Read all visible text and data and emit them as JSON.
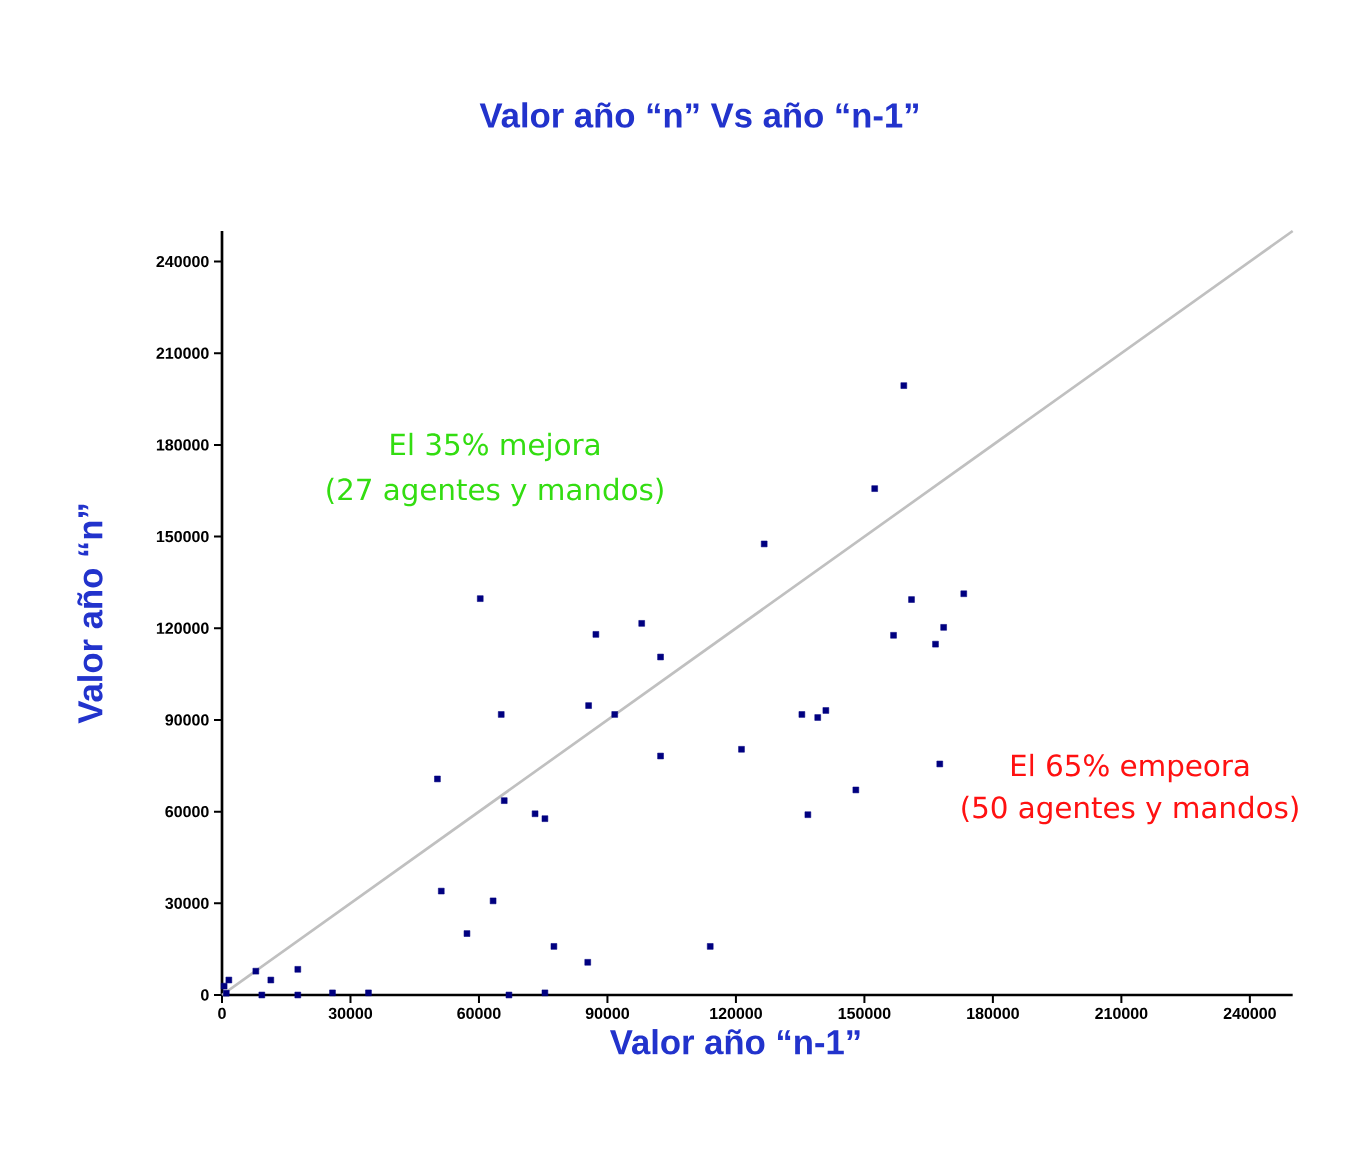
{
  "chart_data": {
    "type": "scatter",
    "title": "Valor año “n” Vs año “n-1”",
    "xlabel": "Valor año “n-1”",
    "ylabel": "Valor año “n”",
    "annotations": [
      "El 35% mejora",
      "(27 agentes y mandos)",
      "El 65% empeora",
      "(50 agentes y mandos)"
    ],
    "xlim": [
      0,
      250000
    ],
    "ylim": [
      0,
      250000
    ],
    "xticks": [
      0,
      30000,
      60000,
      90000,
      120000,
      150000,
      180000,
      210000,
      240000
    ],
    "yticks": [
      0,
      30000,
      60000,
      90000,
      120000,
      150000,
      180000,
      210000,
      240000
    ],
    "grid": false,
    "marker": "square",
    "series": [
      {
        "color": "#000080",
        "x": [
          500,
          1000,
          1600,
          9300,
          17700,
          67000,
          7900,
          11400,
          17700,
          25800,
          34200,
          51200,
          57200,
          63300,
          77500,
          85400,
          114000,
          75400,
          50300,
          60300,
          65200,
          65900,
          73100,
          75400,
          87300,
          85600,
          91700,
          98000,
          102400,
          102400,
          121300,
          126600,
          159200,
          152400,
          161000,
          173200,
          168500,
          156800,
          166600,
          135400,
          139100,
          141000,
          167600,
          148000,
          136800
        ],
        "values": [
          2900,
          600,
          4900,
          0,
          0,
          0,
          7800,
          4900,
          8400,
          700,
          700,
          34000,
          20100,
          30800,
          15900,
          10700,
          15900,
          700,
          70700,
          129700,
          91800,
          63600,
          59300,
          57700,
          118000,
          94700,
          91800,
          121600,
          110600,
          78200,
          80400,
          147600,
          199400,
          165700,
          129400,
          131300,
          120300,
          117700,
          114800,
          91800,
          90800,
          93100,
          75600,
          67100,
          59000
        ]
      },
      {
        "type": "line",
        "marker": "none",
        "color": "#c0c0c0",
        "x": [
          0,
          250000
        ],
        "values": [
          0,
          250000
        ]
      }
    ]
  }
}
